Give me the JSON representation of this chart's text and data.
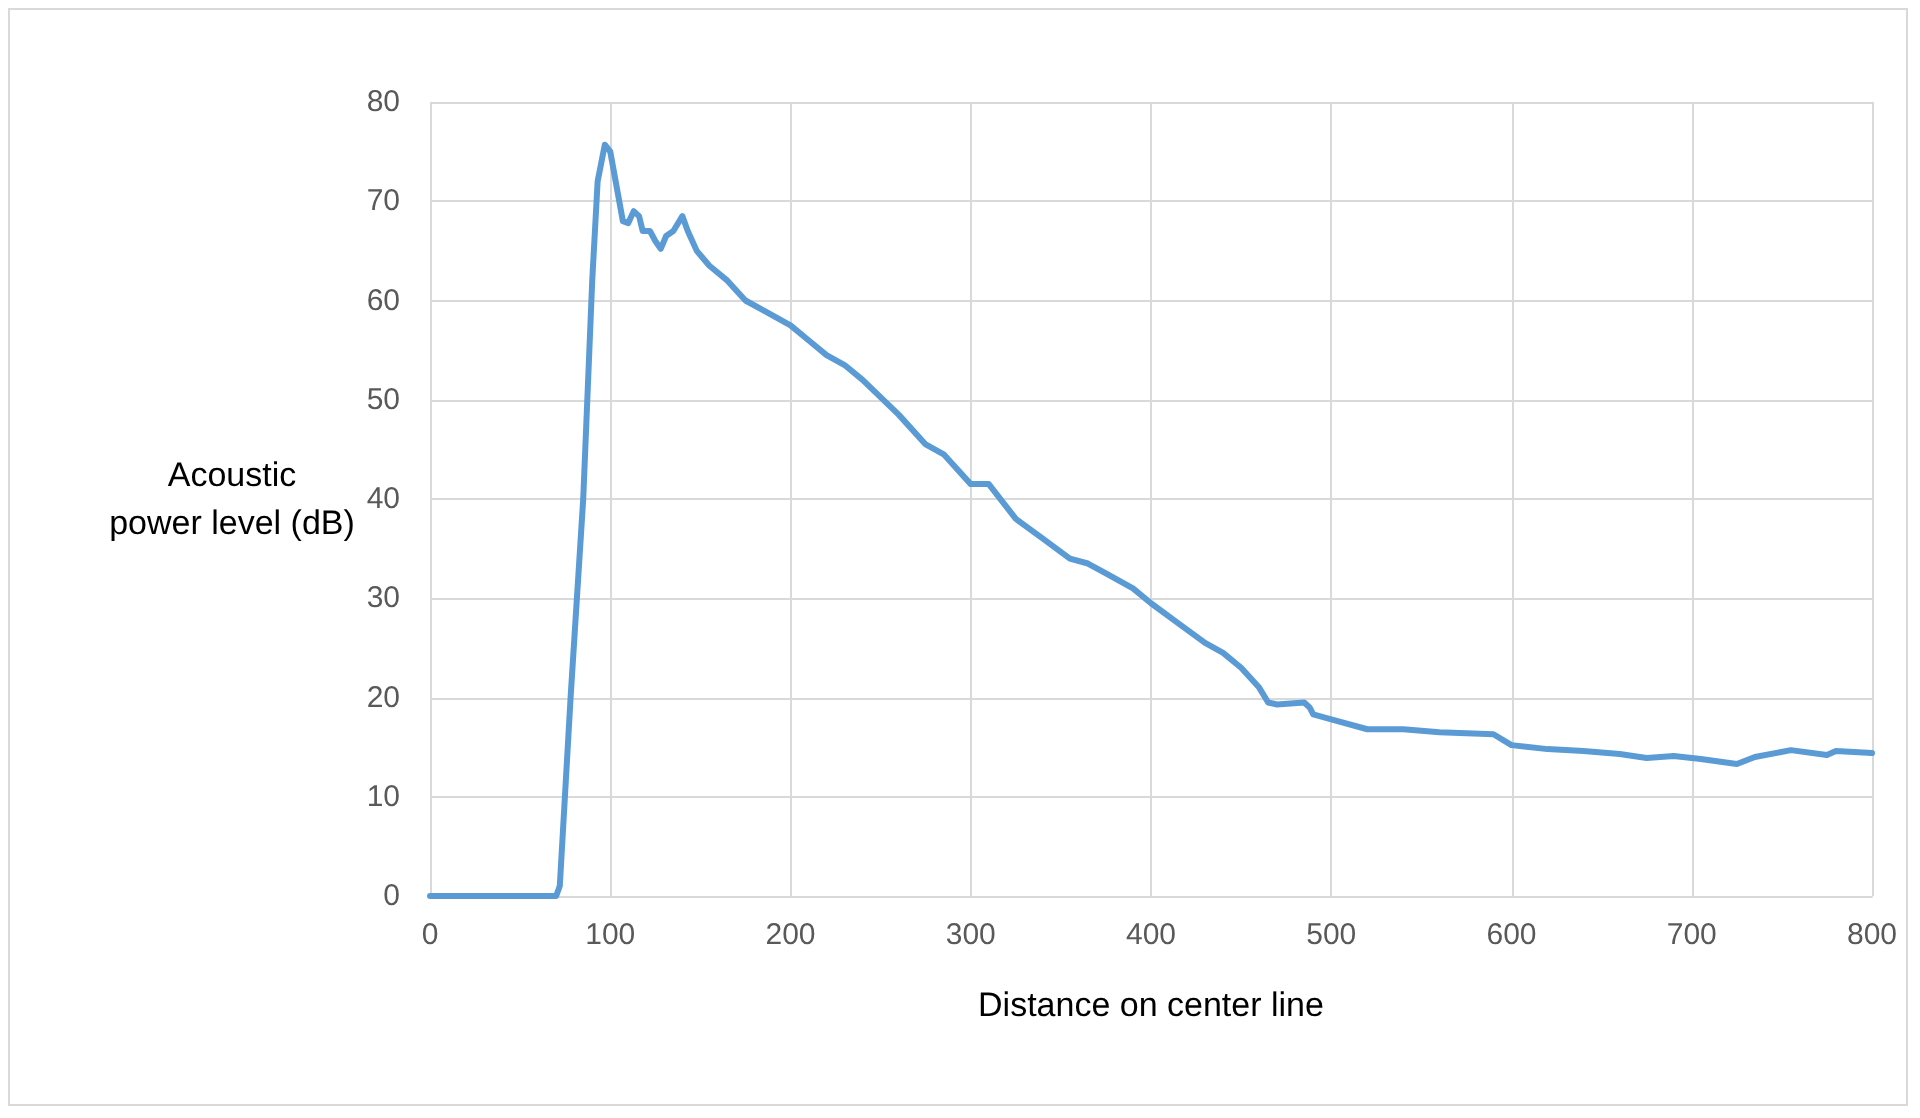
{
  "chart_data": {
    "type": "line",
    "xlabel": "Distance on center line",
    "ylabel": "Acoustic\npower level (dB)",
    "x": [
      0,
      70,
      72,
      78,
      85,
      90,
      93,
      97,
      100,
      103,
      107,
      110,
      113,
      116,
      118,
      122,
      125,
      128,
      131,
      135,
      140,
      143,
      148,
      155,
      165,
      175,
      185,
      200,
      210,
      220,
      230,
      240,
      260,
      275,
      285,
      290,
      300,
      310,
      325,
      340,
      355,
      365,
      375,
      390,
      400,
      415,
      430,
      440,
      450,
      460,
      465,
      470,
      485,
      488,
      490,
      500,
      520,
      540,
      560,
      590,
      600,
      620,
      640,
      660,
      675,
      690,
      705,
      725,
      735,
      755,
      775,
      780,
      800
    ],
    "series": [
      {
        "color": "#5b9bd5",
        "values": [
          0,
          0,
          1,
          20,
          40,
          62,
          72,
          75.7,
          75,
          72,
          68,
          67.8,
          69,
          68.5,
          67,
          67,
          66,
          65.2,
          66.5,
          67,
          68.5,
          67,
          65,
          63.5,
          62,
          60,
          59,
          57.5,
          56,
          54.5,
          53.5,
          52,
          48.5,
          45.5,
          44.5,
          43.5,
          41.5,
          41.5,
          38,
          36,
          34,
          33.5,
          32.5,
          31,
          29.5,
          27.5,
          25.5,
          24.5,
          23,
          21,
          19.5,
          19.3,
          19.5,
          19,
          18.3,
          17.8,
          16.8,
          16.8,
          16.5,
          16.3,
          15.2,
          14.8,
          14.6,
          14.3,
          13.9,
          14.1,
          13.8,
          13.3,
          14,
          14.7,
          14.2,
          14.6,
          14.4
        ]
      }
    ],
    "xlim": [
      0,
      800
    ],
    "xticks": [
      0,
      100,
      200,
      300,
      400,
      500,
      600,
      700,
      800
    ],
    "ylim": [
      0,
      80
    ],
    "yticks": [
      0,
      10,
      20,
      30,
      40,
      50,
      60,
      70,
      80
    ],
    "grid": true,
    "marker": "none",
    "line_style": "solid"
  }
}
